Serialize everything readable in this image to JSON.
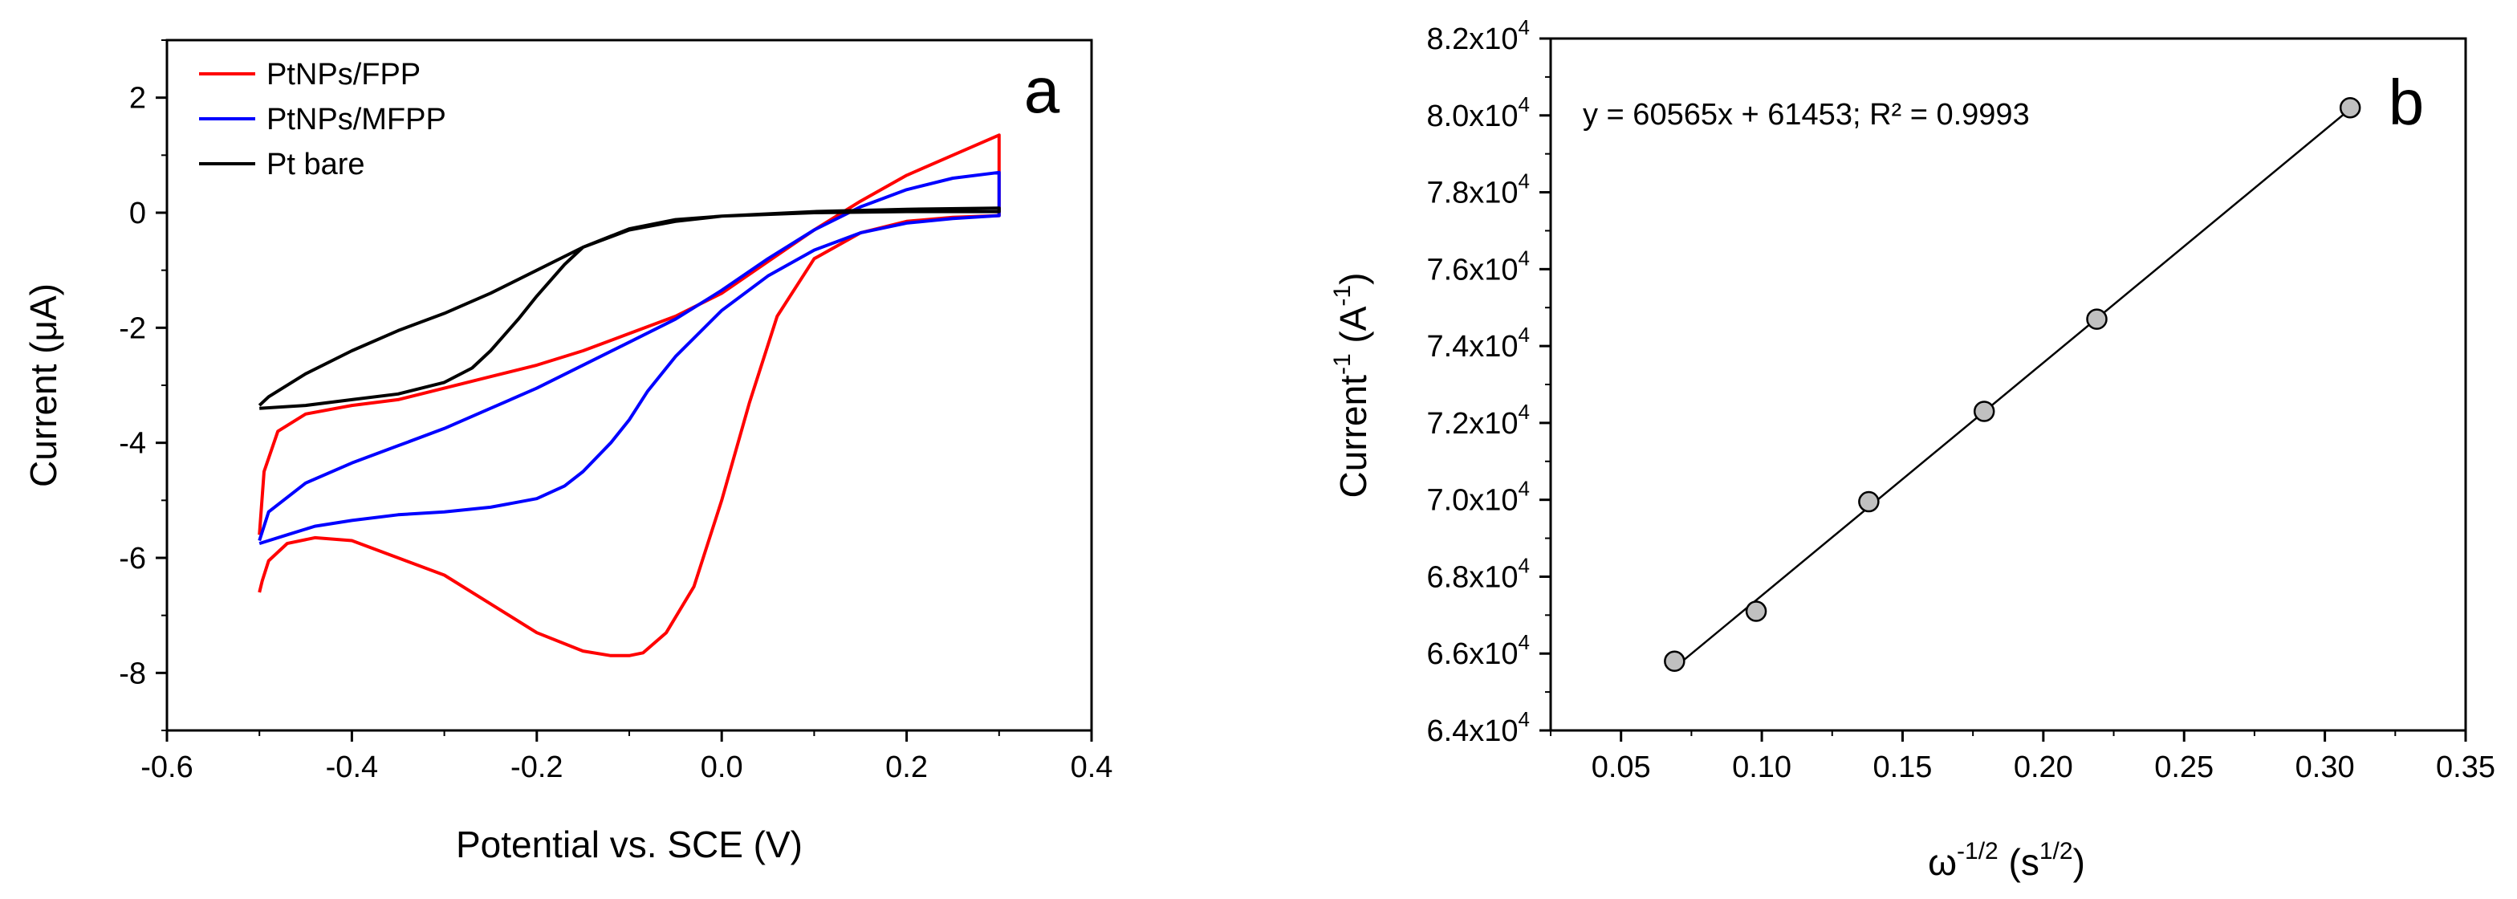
{
  "chart_data": [
    {
      "panel": "a",
      "type": "line",
      "xlabel": "Potential vs. SCE (V)",
      "ylabel_parts": [
        "Current (",
        "μ",
        "A)"
      ],
      "xlim": [
        -0.6,
        0.4
      ],
      "ylim": [
        -9,
        3
      ],
      "xticks": [
        -0.6,
        -0.4,
        -0.2,
        0.0,
        0.2,
        0.4
      ],
      "yticks": [
        -8,
        -6,
        -4,
        -2,
        0,
        2
      ],
      "xtick_labels": [
        "-0.6",
        "-0.4",
        "-0.2",
        "0.0",
        "0.2",
        "0.4"
      ],
      "ytick_labels": [
        "-8",
        "-6",
        "-4",
        "-2",
        "0",
        "2"
      ],
      "legend_position": "top-left",
      "series": [
        {
          "name": "PtNPs/FPP",
          "color": "#ff0000",
          "x": [
            -0.5,
            -0.497,
            -0.49,
            -0.47,
            -0.44,
            -0.4,
            -0.35,
            -0.3,
            -0.25,
            -0.2,
            -0.15,
            -0.12,
            -0.1,
            -0.085,
            -0.06,
            -0.03,
            0.0,
            0.03,
            0.06,
            0.1,
            0.15,
            0.2,
            0.25,
            0.3,
            0.3,
            0.25,
            0.2,
            0.15,
            0.1,
            0.05,
            0.0,
            -0.05,
            -0.1,
            -0.15,
            -0.2,
            -0.25,
            -0.3,
            -0.35,
            -0.4,
            -0.45,
            -0.48,
            -0.495,
            -0.5
          ],
          "y": [
            -6.6,
            -6.4,
            -6.05,
            -5.75,
            -5.65,
            -5.7,
            -6.0,
            -6.3,
            -6.8,
            -7.3,
            -7.62,
            -7.7,
            -7.7,
            -7.65,
            -7.3,
            -6.5,
            -5.0,
            -3.3,
            -1.8,
            -0.8,
            -0.35,
            -0.15,
            -0.08,
            -0.05,
            1.35,
            1.0,
            0.65,
            0.2,
            -0.3,
            -0.85,
            -1.4,
            -1.8,
            -2.1,
            -2.4,
            -2.65,
            -2.85,
            -3.05,
            -3.25,
            -3.35,
            -3.5,
            -3.8,
            -4.5,
            -5.6
          ]
        },
        {
          "name": "PtNPs/MFPP",
          "color": "#0000ff",
          "x": [
            -0.5,
            -0.47,
            -0.44,
            -0.4,
            -0.35,
            -0.3,
            -0.25,
            -0.2,
            -0.17,
            -0.15,
            -0.12,
            -0.1,
            -0.08,
            -0.05,
            0.0,
            0.05,
            0.1,
            0.15,
            0.2,
            0.25,
            0.3,
            0.3,
            0.25,
            0.2,
            0.15,
            0.1,
            0.05,
            0.0,
            -0.05,
            -0.1,
            -0.15,
            -0.2,
            -0.25,
            -0.3,
            -0.35,
            -0.4,
            -0.45,
            -0.49,
            -0.5
          ],
          "y": [
            -5.75,
            -5.6,
            -5.45,
            -5.35,
            -5.25,
            -5.2,
            -5.12,
            -4.97,
            -4.75,
            -4.5,
            -4.0,
            -3.6,
            -3.1,
            -2.5,
            -1.7,
            -1.1,
            -0.65,
            -0.35,
            -0.18,
            -0.1,
            -0.05,
            0.7,
            0.6,
            0.4,
            0.1,
            -0.3,
            -0.8,
            -1.35,
            -1.85,
            -2.25,
            -2.65,
            -3.05,
            -3.4,
            -3.75,
            -4.05,
            -4.35,
            -4.7,
            -5.2,
            -5.7
          ]
        },
        {
          "name": "Pt bare",
          "color": "#000000",
          "x": [
            -0.5,
            -0.45,
            -0.4,
            -0.35,
            -0.3,
            -0.27,
            -0.25,
            -0.22,
            -0.2,
            -0.17,
            -0.15,
            -0.1,
            -0.05,
            0.0,
            0.1,
            0.2,
            0.3,
            0.3,
            0.2,
            0.1,
            0.0,
            -0.05,
            -0.1,
            -0.15,
            -0.2,
            -0.25,
            -0.3,
            -0.35,
            -0.4,
            -0.45,
            -0.49,
            -0.5
          ],
          "y": [
            -3.4,
            -3.35,
            -3.25,
            -3.15,
            -2.95,
            -2.7,
            -2.4,
            -1.85,
            -1.45,
            -0.9,
            -0.6,
            -0.28,
            -0.12,
            -0.06,
            0.0,
            0.02,
            0.02,
            0.08,
            0.06,
            0.02,
            -0.06,
            -0.15,
            -0.3,
            -0.6,
            -1.0,
            -1.4,
            -1.75,
            -2.05,
            -2.4,
            -2.8,
            -3.2,
            -3.35
          ]
        }
      ]
    },
    {
      "panel": "b",
      "type": "scatter",
      "xlabel_parts": [
        "ω",
        "-1/2",
        " (s",
        "1/2",
        ")"
      ],
      "ylabel_parts": [
        "Current",
        "-1",
        " (A",
        "-1",
        ")"
      ],
      "xlim": [
        0.025,
        0.35
      ],
      "ylim": [
        64000,
        82000
      ],
      "xticks": [
        0.05,
        0.1,
        0.15,
        0.2,
        0.25,
        0.3,
        0.35
      ],
      "xtick_labels": [
        "0.05",
        "0.10",
        "0.15",
        "0.20",
        "0.25",
        "0.30",
        "0.35"
      ],
      "yticks": [
        64000,
        66000,
        68000,
        70000,
        72000,
        74000,
        76000,
        78000,
        80000,
        82000
      ],
      "ytick_labels": [
        {
          "mant": "6.4x10",
          "exp": "4"
        },
        {
          "mant": "6.6x10",
          "exp": "4"
        },
        {
          "mant": "6.8x10",
          "exp": "4"
        },
        {
          "mant": "7.0x10",
          "exp": "4"
        },
        {
          "mant": "7.2x10",
          "exp": "4"
        },
        {
          "mant": "7.4x10",
          "exp": "4"
        },
        {
          "mant": "7.6x10",
          "exp": "4"
        },
        {
          "mant": "7.8x10",
          "exp": "4"
        },
        {
          "mant": "8.0x10",
          "exp": "4"
        },
        {
          "mant": "8.2x10",
          "exp": "4"
        }
      ],
      "points": {
        "x": [
          0.069,
          0.098,
          0.138,
          0.179,
          0.219,
          0.309
        ],
        "y": [
          65800,
          67100,
          69950,
          72300,
          74700,
          80200
        ]
      },
      "fit": {
        "slope": 60565,
        "intercept": 61453,
        "x_range": [
          0.069,
          0.309
        ]
      },
      "equation": "y = 60565x + 61453; R² = 0.9993",
      "marker_color": "#c0c0c0"
    }
  ],
  "panel_labels": {
    "a": "a",
    "b": "b"
  }
}
